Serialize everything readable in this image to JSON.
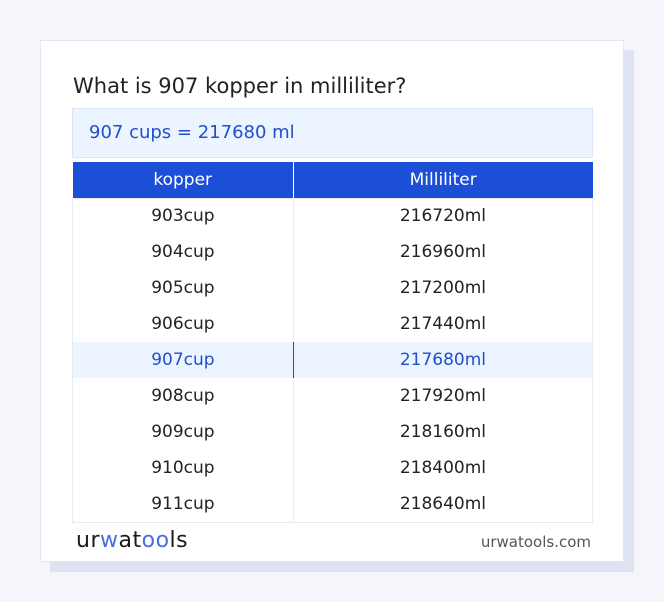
{
  "title": "What is 907 kopper in milliliter?",
  "result": "907 cups = 217680 ml",
  "table": {
    "headers": [
      "kopper",
      "Milliliter"
    ],
    "rows": [
      [
        "903cup",
        "216720ml"
      ],
      [
        "904cup",
        "216960ml"
      ],
      [
        "905cup",
        "217200ml"
      ],
      [
        "906cup",
        "217440ml"
      ],
      [
        "907cup",
        "217680ml"
      ],
      [
        "908cup",
        "217920ml"
      ],
      [
        "909cup",
        "218160ml"
      ],
      [
        "910cup",
        "218400ml"
      ],
      [
        "911cup",
        "218640ml"
      ]
    ],
    "highlight_index": 4
  },
  "footer": {
    "logo": "urwatools",
    "site": "urwatools.com"
  },
  "colors": {
    "accent": "#1b4fd6",
    "highlight_bg": "#ebf4ff"
  }
}
